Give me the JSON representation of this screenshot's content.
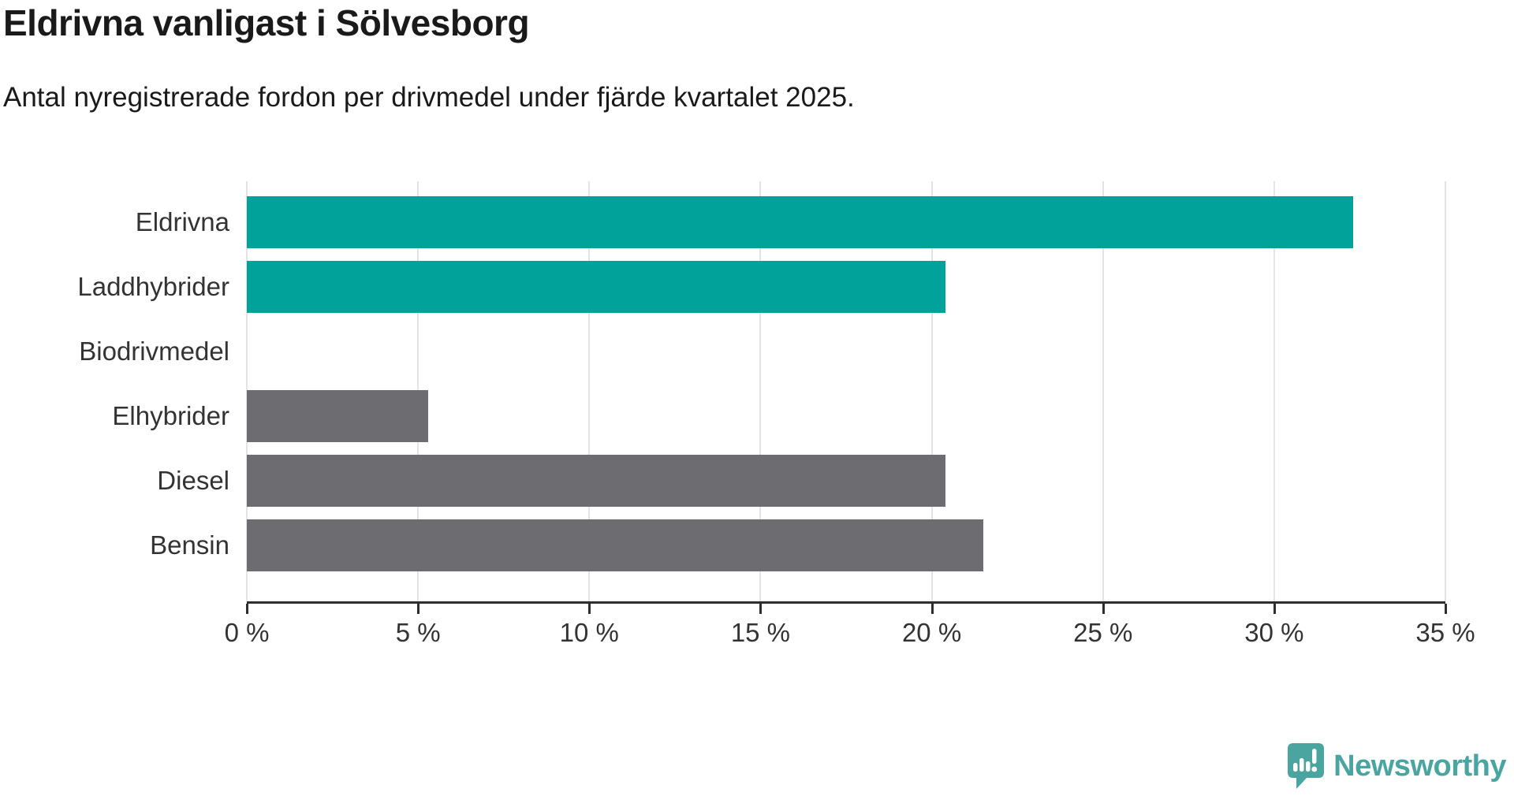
{
  "header": {
    "title": "Eldrivna vanligast i Sölvesborg",
    "subtitle": "Antal nyregistrerade fordon per drivmedel under fjärde kvartalet 2025."
  },
  "chart_data": {
    "type": "bar",
    "orientation": "horizontal",
    "title": "Eldrivna vanligast i Sölvesborg",
    "subtitle": "Antal nyregistrerade fordon per drivmedel under fjärde kvartalet 2025.",
    "unit": "%",
    "categories": [
      "Eldrivna",
      "Laddhybrider",
      "Biodrivmedel",
      "Elhybrider",
      "Diesel",
      "Bensin"
    ],
    "values": [
      32.3,
      20.4,
      0,
      5.3,
      20.4,
      21.5
    ],
    "xlim": [
      0,
      35
    ],
    "x_ticks": [
      0,
      5,
      10,
      15,
      20,
      25,
      30,
      35
    ],
    "x_tick_labels": [
      "0 %",
      "5 %",
      "10 %",
      "15 %",
      "20 %",
      "25 %",
      "30 %",
      "35 %"
    ],
    "grid": true,
    "legend": false,
    "bar_colors": [
      "#00a29a",
      "#00a29a",
      "#6c6c71",
      "#6c6c71",
      "#6c6c71",
      "#6c6c71"
    ]
  },
  "colors": {
    "accent_teal": "#00a29a",
    "bar_gray": "#6c6c71",
    "gridline": "#e4e4e4",
    "axis": "#2e2e2e",
    "text_dark": "#1a1a1a",
    "text_label": "#333333",
    "logo_teal": "#4aa5a1"
  },
  "footer": {
    "brand": "Newsworthy",
    "logo_icon": "newsworthy-speech-bubble-chart-icon"
  }
}
